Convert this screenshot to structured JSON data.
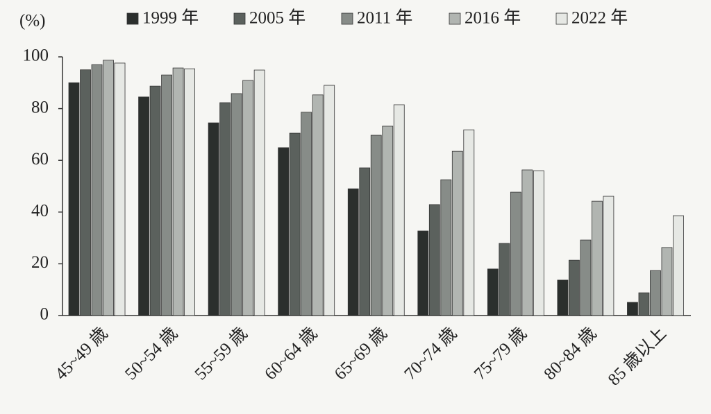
{
  "chart_data": {
    "type": "bar",
    "ylabel": "(%)",
    "categories": [
      "45~49 歳",
      "50~54 歳",
      "55~59 歳",
      "60~64 歳",
      "65~69 歳",
      "70~74 歳",
      "75~79 歳",
      "80~84 歳",
      "85 歳以上"
    ],
    "series": [
      {
        "name": "1999 年",
        "color": "#2b2f2d",
        "values": [
          90,
          84.5,
          74.5,
          64.9,
          49,
          32.7,
          18,
          13.7,
          5.1
        ]
      },
      {
        "name": "2005 年",
        "color": "#5b615d",
        "values": [
          95,
          88.7,
          82.3,
          70.5,
          57.1,
          42.9,
          27.9,
          21.4,
          8.8
        ]
      },
      {
        "name": "2011 年",
        "color": "#878c88",
        "values": [
          97,
          93,
          85.8,
          78.6,
          69.7,
          52.5,
          47.7,
          29.2,
          17.4
        ]
      },
      {
        "name": "2016 年",
        "color": "#b1b5b1",
        "values": [
          98.7,
          95.7,
          90.9,
          85.3,
          73.2,
          63.5,
          56.3,
          44.2,
          26.3
        ]
      },
      {
        "name": "2022 年",
        "color": "#e6e8e4",
        "values": [
          97.6,
          95.4,
          94.9,
          89,
          81.5,
          71.8,
          56,
          46.1,
          38.6
        ]
      }
    ],
    "ylim": [
      0,
      100
    ],
    "yticks": [
      0,
      20,
      40,
      60,
      80,
      100
    ],
    "grid": false
  }
}
